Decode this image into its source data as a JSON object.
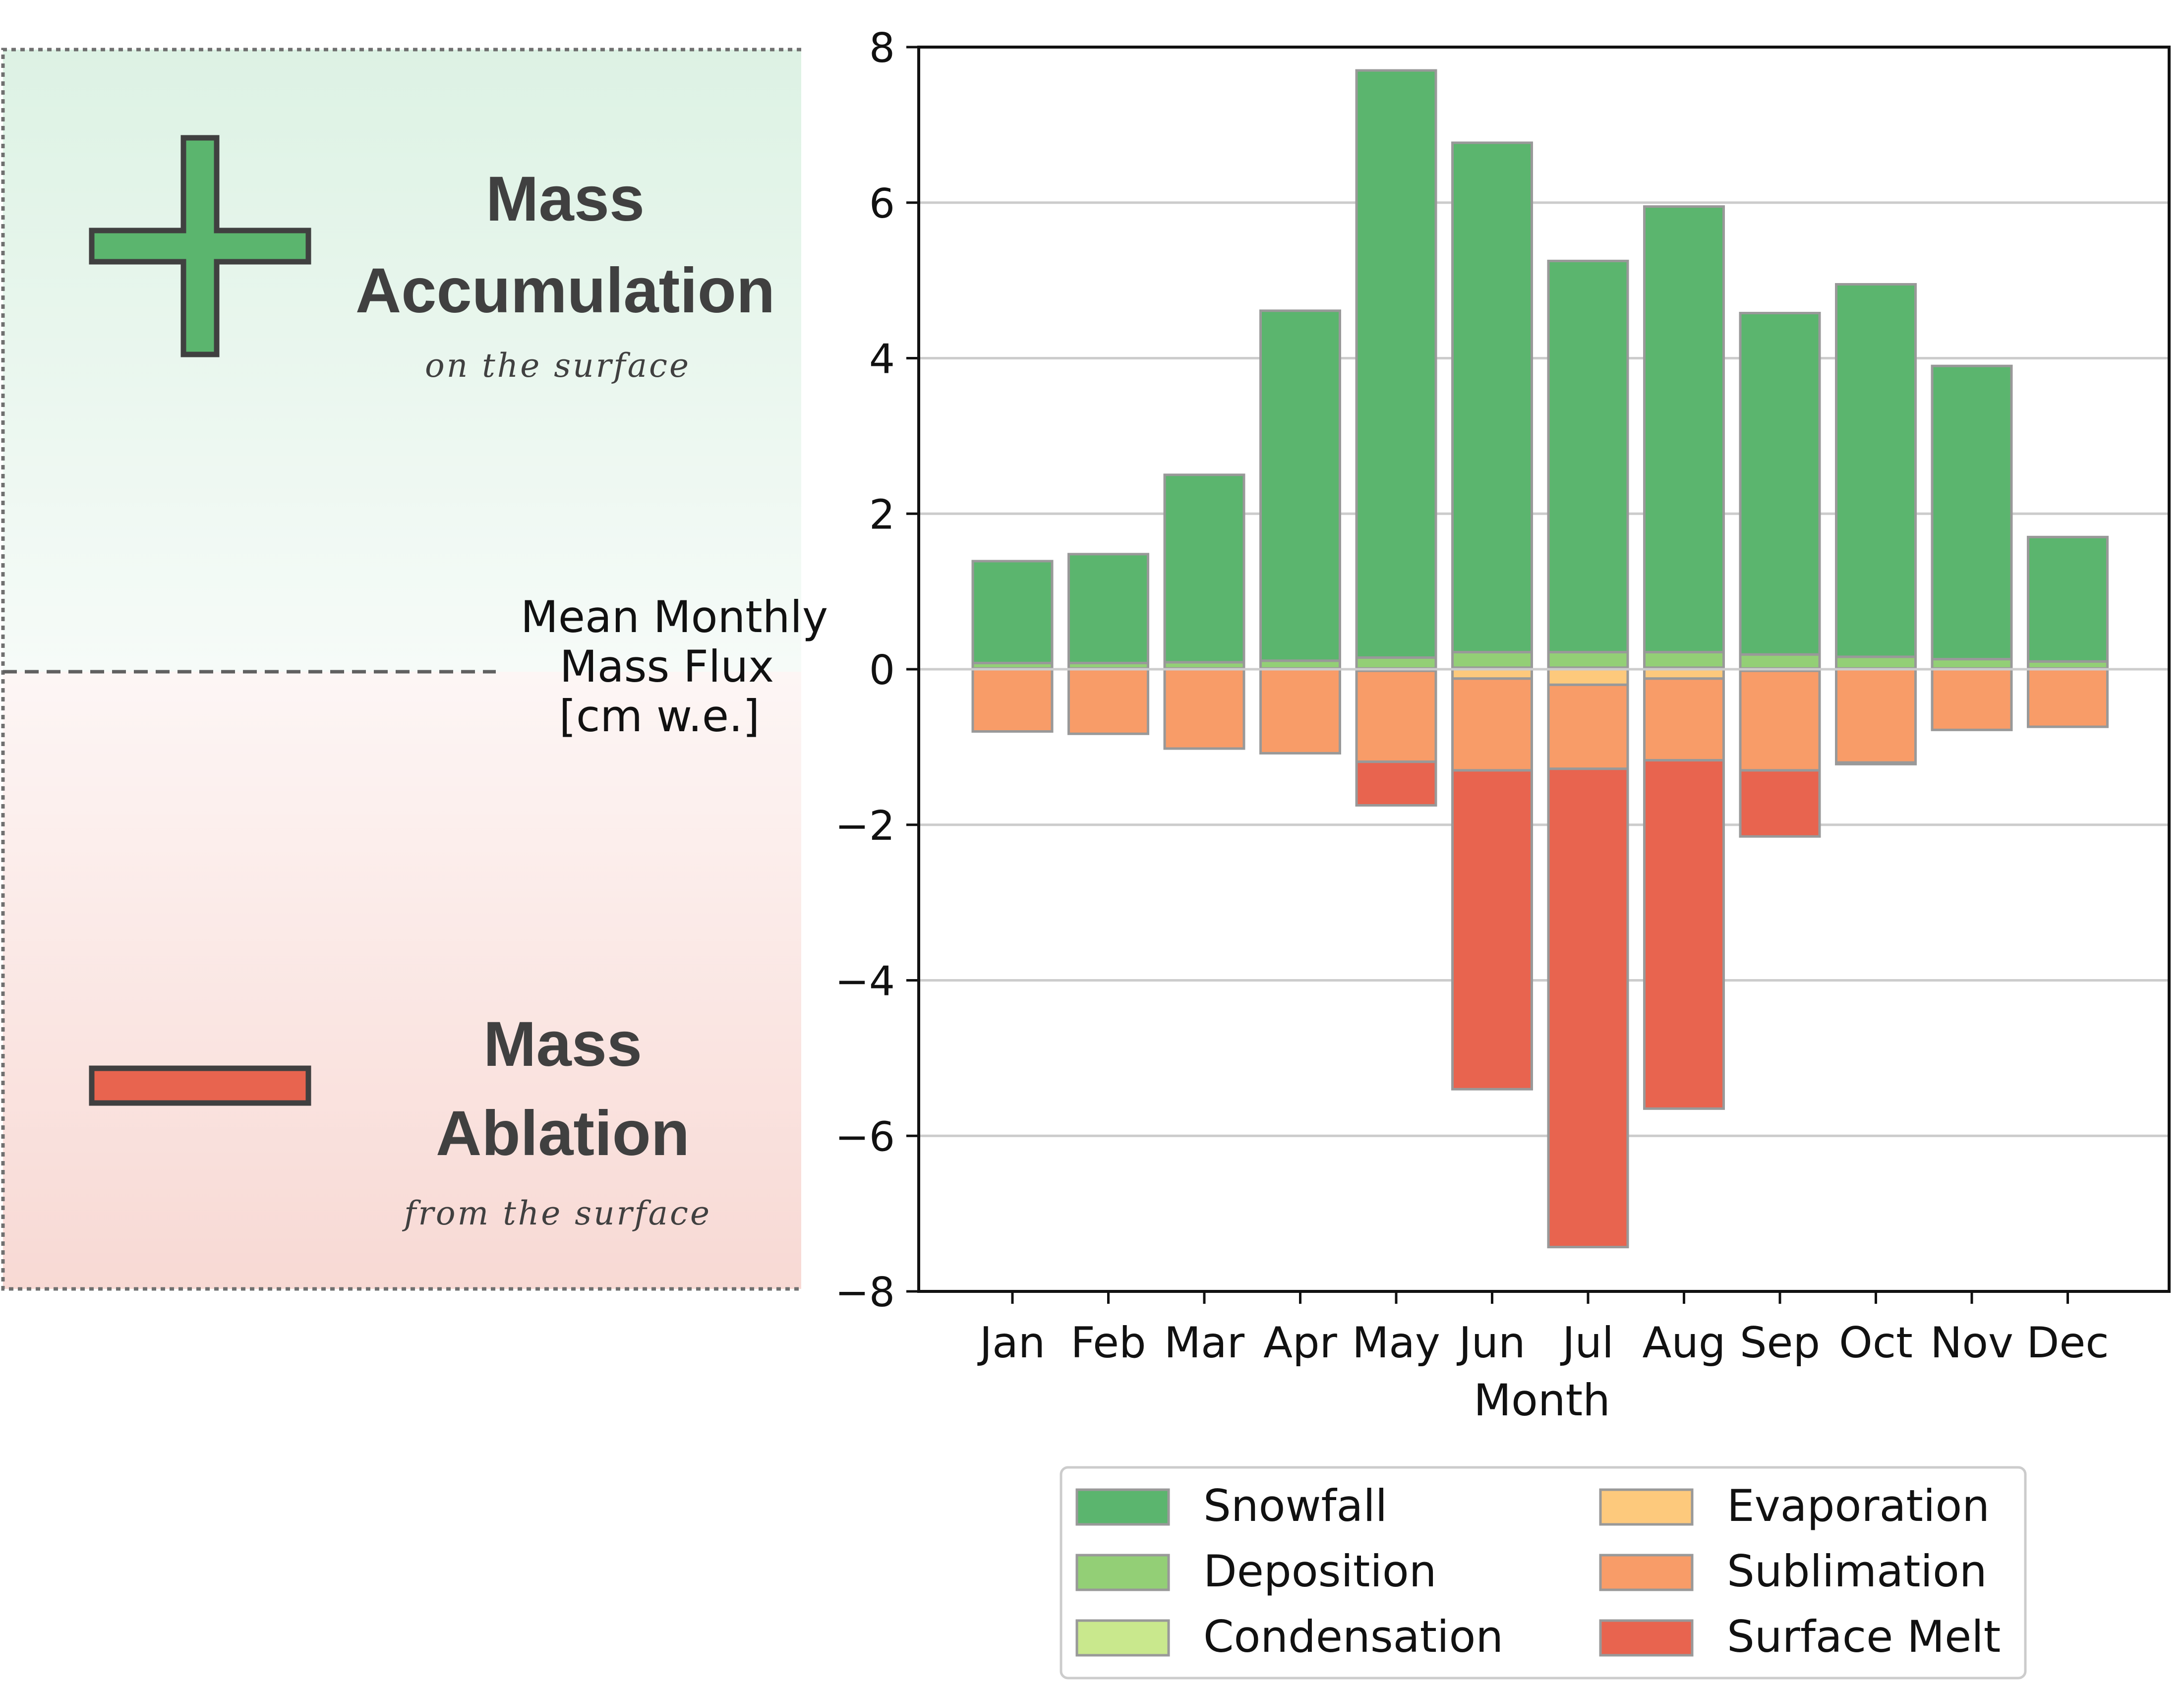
{
  "panel": {
    "accumulation": {
      "title_line1": "Mass",
      "title_line2": "Accumulation",
      "subtitle": "on the surface",
      "color": "#5bb56e",
      "bg_top": "#ddf2e4",
      "bg_bottom": "#f6fbf8",
      "icon": "plus-icon"
    },
    "ablation": {
      "title_line1": "Mass",
      "title_line2": "Ablation",
      "subtitle": "from the surface",
      "color": "#e8644f",
      "bg_top": "#fdf6f5",
      "bg_bottom": "#f8d9d4",
      "icon": "minus-icon"
    }
  },
  "chart_data": {
    "type": "bar",
    "stacked": true,
    "categories": [
      "Jan",
      "Feb",
      "Mar",
      "Apr",
      "May",
      "Jun",
      "Jul",
      "Aug",
      "Sep",
      "Oct",
      "Nov",
      "Dec"
    ],
    "ylabel_lines": [
      "Mean Monthly",
      "Mass Flux",
      "[cm w.e.]"
    ],
    "xlabel": "Month",
    "ylim": [
      -8,
      8
    ],
    "yticks": [
      8,
      6,
      4,
      2,
      0,
      -2,
      -4,
      -6,
      -8
    ],
    "ytick_labels": [
      "8",
      "6",
      "4",
      "2",
      "0",
      "−2",
      "−4",
      "−6",
      "−8"
    ],
    "grid": "horizontal",
    "legend_position": "bottom-center",
    "positive_series": [
      {
        "name": "Condensation",
        "color": "#c9e88d",
        "values": [
          0.01,
          0.01,
          0.01,
          0.01,
          0.01,
          0.02,
          0.02,
          0.02,
          0.01,
          0.01,
          0.01,
          0.01
        ]
      },
      {
        "name": "Deposition",
        "color": "#93cf76",
        "values": [
          0.07,
          0.07,
          0.08,
          0.1,
          0.14,
          0.2,
          0.2,
          0.2,
          0.18,
          0.15,
          0.12,
          0.09
        ]
      },
      {
        "name": "Snowfall",
        "color": "#5bb56e",
        "values": [
          1.31,
          1.4,
          2.41,
          4.5,
          7.55,
          6.55,
          5.03,
          5.73,
          4.39,
          4.79,
          3.77,
          1.6
        ]
      }
    ],
    "negative_series": [
      {
        "name": "Evaporation",
        "color": "#fdc97c",
        "values": [
          0,
          0,
          0,
          0,
          -0.02,
          -0.12,
          -0.2,
          -0.12,
          -0.02,
          0,
          0,
          0
        ]
      },
      {
        "name": "Sublimation",
        "color": "#f89c68",
        "values": [
          -0.8,
          -0.83,
          -1.02,
          -1.08,
          -1.17,
          -1.18,
          -1.08,
          -1.05,
          -1.28,
          -1.2,
          -0.78,
          -0.74
        ]
      },
      {
        "name": "Surface Melt",
        "color": "#e8644f",
        "values": [
          0,
          0,
          0,
          0,
          -0.56,
          -4.1,
          -6.15,
          -4.48,
          -0.85,
          -0.02,
          0,
          0
        ]
      }
    ],
    "legend": [
      {
        "name": "Snowfall",
        "color": "#5bb56e"
      },
      {
        "name": "Deposition",
        "color": "#93cf76"
      },
      {
        "name": "Condensation",
        "color": "#c9e88d"
      },
      {
        "name": "Evaporation",
        "color": "#fdc97c"
      },
      {
        "name": "Sublimation",
        "color": "#f89c68"
      },
      {
        "name": "Surface Melt",
        "color": "#e8644f"
      }
    ]
  }
}
